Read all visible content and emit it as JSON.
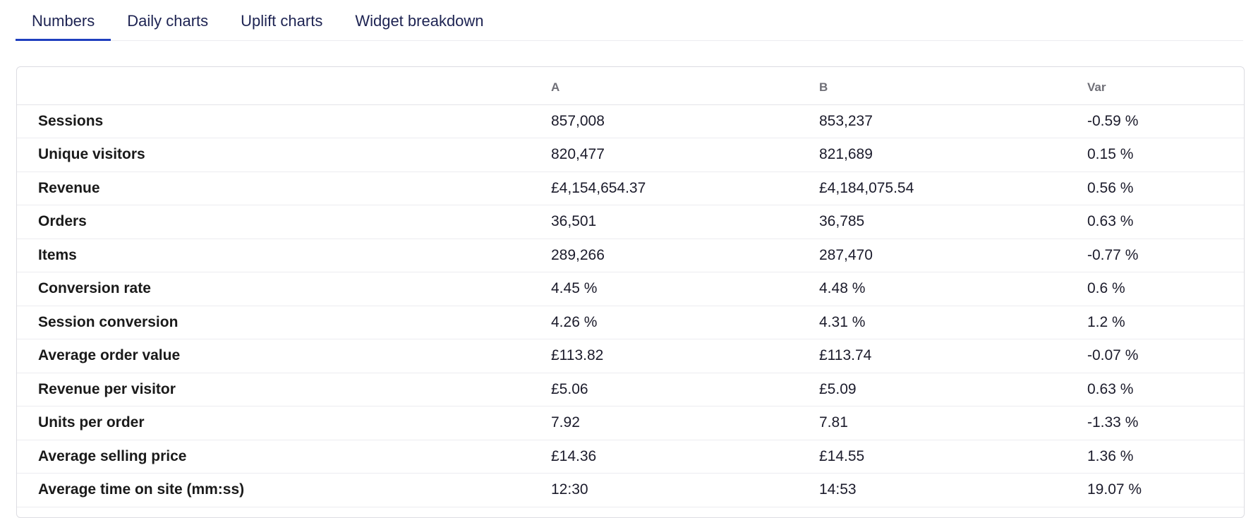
{
  "tabs": [
    {
      "label": "Numbers",
      "active": true
    },
    {
      "label": "Daily charts",
      "active": false
    },
    {
      "label": "Uplift charts",
      "active": false
    },
    {
      "label": "Widget breakdown",
      "active": false
    }
  ],
  "table": {
    "headers": [
      "",
      "A",
      "B",
      "Var"
    ],
    "rows": [
      {
        "metric": "Sessions",
        "a": "857,008",
        "b": "853,237",
        "var": "-0.59 %"
      },
      {
        "metric": "Unique visitors",
        "a": "820,477",
        "b": "821,689",
        "var": "0.15 %"
      },
      {
        "metric": "Revenue",
        "a": "£4,154,654.37",
        "b": "£4,184,075.54",
        "var": "0.56 %"
      },
      {
        "metric": "Orders",
        "a": "36,501",
        "b": "36,785",
        "var": "0.63 %"
      },
      {
        "metric": "Items",
        "a": "289,266",
        "b": "287,470",
        "var": "-0.77 %"
      },
      {
        "metric": "Conversion rate",
        "a": "4.45 %",
        "b": "4.48 %",
        "var": "0.6 %"
      },
      {
        "metric": "Session conversion",
        "a": "4.26 %",
        "b": "4.31 %",
        "var": "1.2 %"
      },
      {
        "metric": "Average order value",
        "a": "£113.82",
        "b": "£113.74",
        "var": "-0.07 %"
      },
      {
        "metric": "Revenue per visitor",
        "a": "£5.06",
        "b": "£5.09",
        "var": "0.63 %"
      },
      {
        "metric": "Units per order",
        "a": "7.92",
        "b": "7.81",
        "var": "-1.33 %"
      },
      {
        "metric": "Average selling price",
        "a": "£14.36",
        "b": "£14.55",
        "var": "1.36 %"
      },
      {
        "metric": "Average time on site (mm:ss)",
        "a": "12:30",
        "b": "14:53",
        "var": "19.07 %"
      }
    ]
  },
  "colors": {
    "accent": "#1f3fbf",
    "tab_text": "#1d2352",
    "header_text": "#6f6f77",
    "border": "#dcdce2"
  }
}
